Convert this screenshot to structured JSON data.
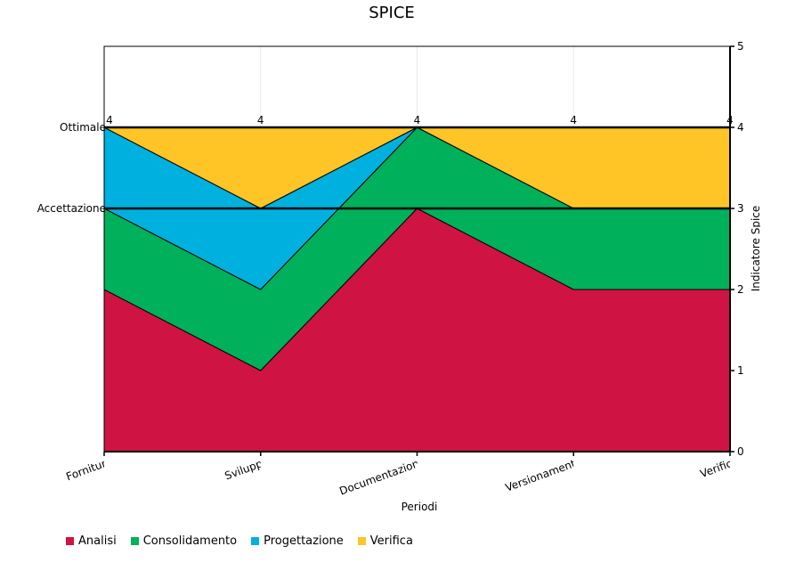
{
  "chart_data": {
    "type": "area",
    "stacked": true,
    "title": "SPICE",
    "xlabel": "Periodi",
    "ylabel": "Indicatore Spice",
    "categories": [
      "Fornitura",
      "Sviluppo",
      "Documentazione",
      "Versionamento",
      "Verifica"
    ],
    "ylim": [
      0,
      5
    ],
    "yticks": [
      0,
      1,
      2,
      3,
      4,
      5
    ],
    "series": [
      {
        "name": "Analisi",
        "values": [
          2,
          1,
          3,
          2,
          2
        ],
        "color": "#cf1342"
      },
      {
        "name": "Consolidamento",
        "values": [
          1,
          1,
          1,
          1,
          1
        ],
        "color": "#00b05a"
      },
      {
        "name": "Progettazione",
        "values": [
          1,
          1,
          0,
          0,
          0
        ],
        "color": "#00b0de"
      },
      {
        "name": "Verifica",
        "values": [
          0,
          1,
          0,
          1,
          1
        ],
        "color": "#ffc425"
      }
    ],
    "totals": [
      "4",
      "4",
      "4",
      "4",
      "4"
    ],
    "reference_lines": [
      {
        "label": "Ottimale",
        "value": 4
      },
      {
        "label": "Accettazione",
        "value": 3
      }
    ],
    "legend_position": "bottom-left",
    "grid": false
  }
}
